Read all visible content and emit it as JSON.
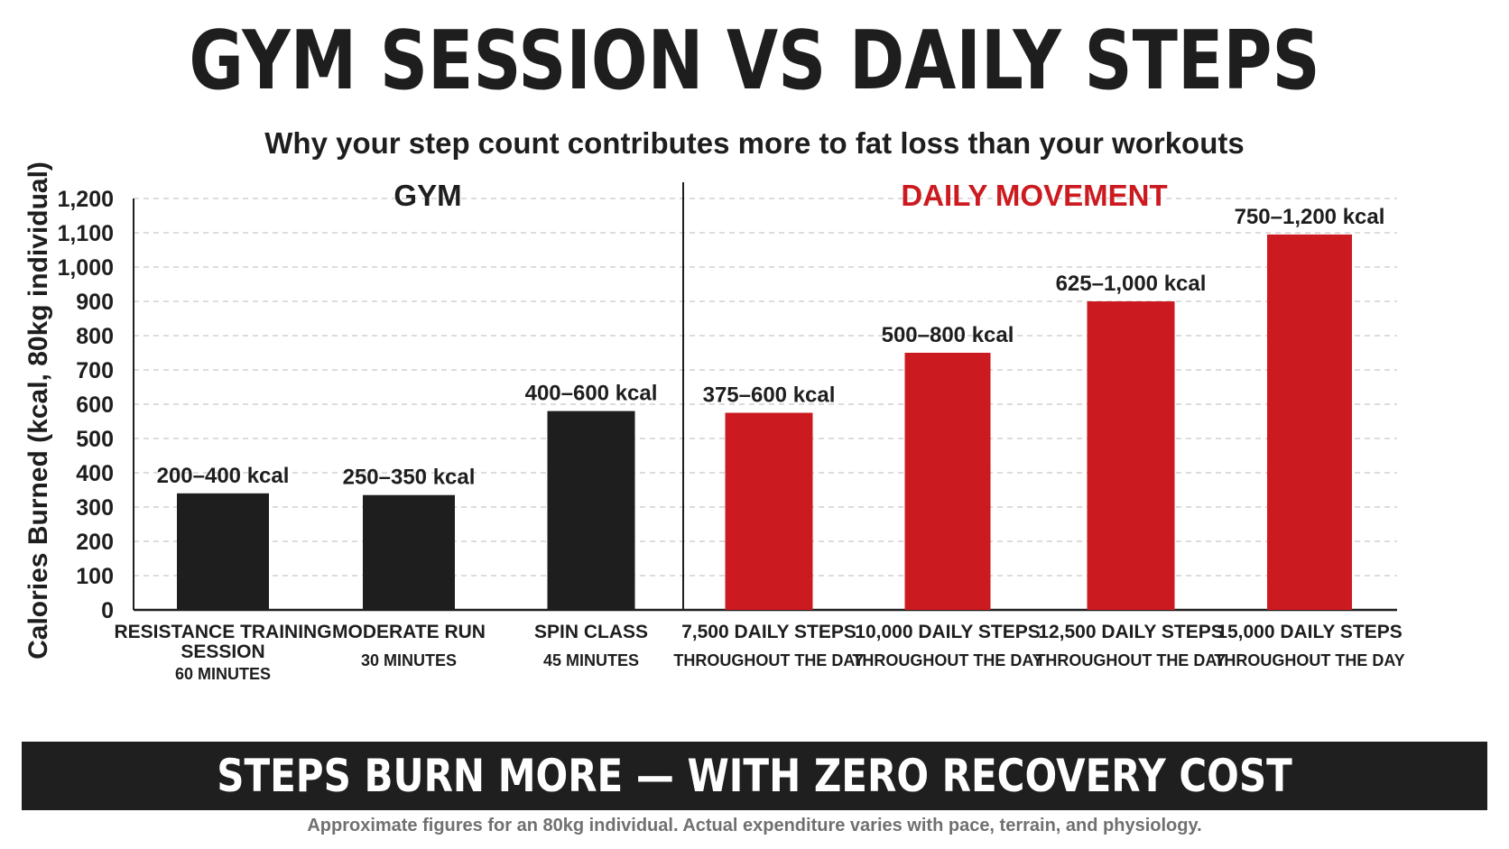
{
  "title": "GYM SESSION VS DAILY STEPS",
  "subtitle": "Why your step count contributes more to fat loss than your workouts",
  "banner": "STEPS BURN MORE — WITH ZERO RECOVERY COST",
  "footnote": "Approximate figures for an 80kg individual. Actual expenditure varies with pace, terrain, and physiology.",
  "colors": {
    "gym": "#1e1e1e",
    "daily": "#cc1b20",
    "grid": "#c8c8c8"
  },
  "chart_data": {
    "type": "bar",
    "ylabel": "Calories Burned (kcal, 80kg individual)",
    "ylim": [
      0,
      1200
    ],
    "yticks": [
      "0",
      "100",
      "200",
      "300",
      "400",
      "500",
      "600",
      "700",
      "800",
      "900",
      "1,000",
      "1,100",
      "1,200"
    ],
    "ytick_values": [
      0,
      100,
      200,
      300,
      400,
      500,
      600,
      700,
      800,
      900,
      1000,
      1100,
      1200
    ],
    "grid": true,
    "groups": [
      {
        "label": "GYM",
        "color": "#1e1e1e"
      },
      {
        "label": "DAILY MOVEMENT",
        "color": "#cc1b20"
      }
    ],
    "bars": [
      {
        "group": 0,
        "label": [
          "RESISTANCE TRAINING",
          "SESSION"
        ],
        "sub": "60 MINUTES",
        "range": "200–400 kcal",
        "value": 340
      },
      {
        "group": 0,
        "label": [
          "MODERATE RUN"
        ],
        "sub": "30 MINUTES",
        "range": "250–350 kcal",
        "value": 335
      },
      {
        "group": 0,
        "label": [
          "SPIN CLASS"
        ],
        "sub": "45 MINUTES",
        "range": "400–600 kcal",
        "value": 580
      },
      {
        "group": 1,
        "label": [
          "7,500 DAILY STEPS"
        ],
        "sub": "THROUGHOUT THE DAY",
        "range": "375–600 kcal",
        "value": 575
      },
      {
        "group": 1,
        "label": [
          "10,000 DAILY STEPS"
        ],
        "sub": "THROUGHOUT THE DAY",
        "range": "500–800 kcal",
        "value": 750
      },
      {
        "group": 1,
        "label": [
          "12,500 DAILY STEPS"
        ],
        "sub": "THROUGHOUT THE DAY",
        "range": "625–1,000 kcal",
        "value": 900
      },
      {
        "group": 1,
        "label": [
          "15,000 DAILY STEPS"
        ],
        "sub": "THROUGHOUT THE DAY",
        "range": "750–1,200 kcal",
        "value": 1095
      }
    ]
  }
}
